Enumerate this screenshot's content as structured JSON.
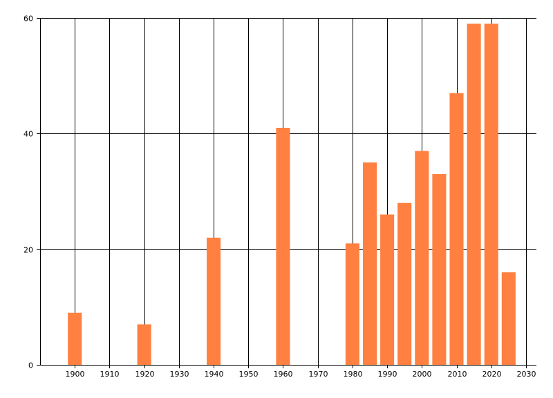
{
  "chart_data": {
    "type": "bar",
    "x": [
      1900,
      1920,
      1940,
      1960,
      1980,
      1985,
      1990,
      1995,
      2000,
      2005,
      2010,
      2015,
      2020,
      2025
    ],
    "values": [
      9,
      7,
      22,
      41,
      21,
      35,
      26,
      28,
      37,
      33,
      47,
      59,
      59,
      16
    ],
    "bar_width_years": 4,
    "xlim": [
      1890,
      2033
    ],
    "ylim": [
      0,
      60
    ],
    "x_ticks": [
      "1900",
      "1910",
      "1920",
      "1930",
      "1940",
      "1950",
      "1960",
      "1970",
      "1980",
      "1990",
      "2000",
      "2010",
      "2020",
      "2030"
    ],
    "y_ticks": [
      "0",
      "20",
      "40",
      "60"
    ],
    "grid": true,
    "title": "",
    "xlabel": "",
    "ylabel": "",
    "colors": {
      "bar": "#ff8040",
      "grid": "#000000",
      "axis": "#000000",
      "background": "#ffffff"
    }
  }
}
